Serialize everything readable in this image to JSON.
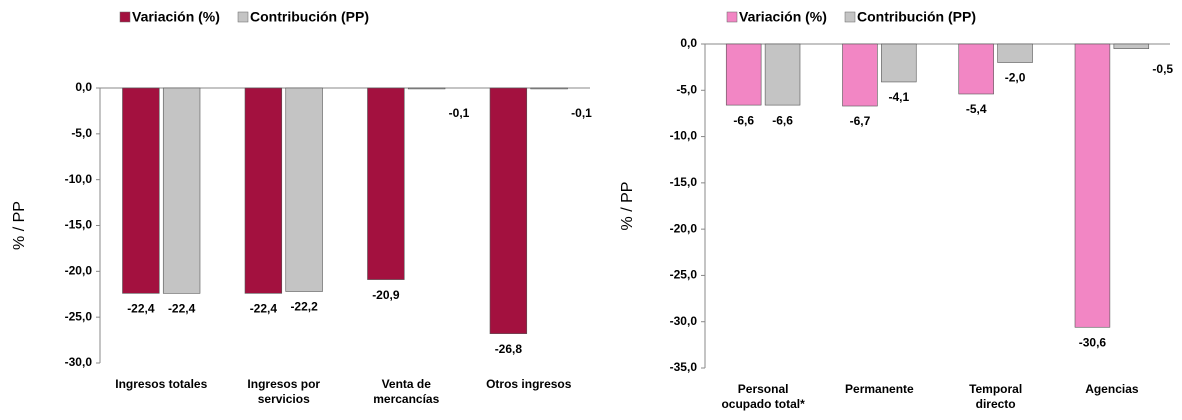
{
  "chart_data": [
    {
      "type": "bar",
      "y_label": "% / PP",
      "categories": [
        "Ingresos totales",
        "Ingresos por\nservicios",
        "Venta de\nmercancías",
        "Otros ingresos"
      ],
      "series": [
        {
          "name": "Variación (%)",
          "color": "#a3113f",
          "values": [
            -22.4,
            -22.4,
            -20.9,
            -26.8
          ],
          "value_labels": [
            "-22,4",
            "-22,4",
            "-20,9",
            "-26,8"
          ]
        },
        {
          "name": "Contribución (PP)",
          "color": "#c4c4c4",
          "values": [
            -22.4,
            -22.2,
            -0.1,
            -0.1
          ],
          "value_labels": [
            "-22,4",
            "-22,2",
            "-0,1",
            "-0,1"
          ]
        }
      ],
      "ylim": [
        -30,
        0
      ],
      "yticks": [
        {
          "value": 0,
          "label": "0,0"
        },
        {
          "value": -5,
          "label": "-5,0"
        },
        {
          "value": -10,
          "label": "-10,0"
        },
        {
          "value": -15,
          "label": "-15,0"
        },
        {
          "value": -20,
          "label": "-20,0"
        },
        {
          "value": -25,
          "label": "-25,0"
        },
        {
          "value": -30,
          "label": "-30,0"
        }
      ]
    },
    {
      "type": "bar",
      "y_label": "% / PP",
      "categories": [
        "Personal\nocupado total*",
        "Permanente",
        "Temporal\ndirecto",
        "Agencias"
      ],
      "series": [
        {
          "name": "Variación (%)",
          "color": "#f286c4",
          "values": [
            -6.6,
            -6.7,
            -5.4,
            -30.6
          ],
          "value_labels": [
            "-6,6",
            "-6,7",
            "-5,4",
            "-30,6"
          ]
        },
        {
          "name": "Contribución (PP)",
          "color": "#c4c4c4",
          "values": [
            -6.6,
            -4.1,
            -2.0,
            -0.5
          ],
          "value_labels": [
            "-6,6",
            "-4,1",
            "-2,0",
            "-0,5"
          ]
        }
      ],
      "ylim": [
        -35,
        0
      ],
      "yticks": [
        {
          "value": 0,
          "label": "0,0"
        },
        {
          "value": -5,
          "label": "-5,0"
        },
        {
          "value": -10,
          "label": "-10,0"
        },
        {
          "value": -15,
          "label": "-15,0"
        },
        {
          "value": -20,
          "label": "-20,0"
        },
        {
          "value": -25,
          "label": "-25,0"
        },
        {
          "value": -30,
          "label": "-30,0"
        },
        {
          "value": -35,
          "label": "-35,0"
        }
      ]
    }
  ]
}
